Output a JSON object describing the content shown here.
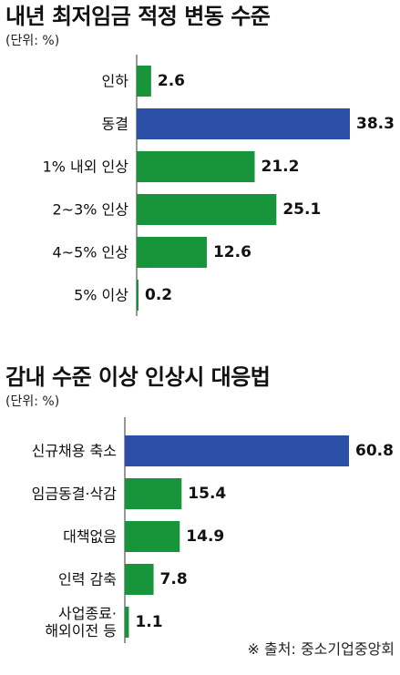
{
  "chart_data": [
    {
      "type": "bar",
      "orientation": "horizontal",
      "title": "내년 최저임금 적정 변동 수준",
      "unit": "(단위: %)",
      "categories": [
        "인하",
        "동결",
        "1% 내외 인상",
        "2~3% 인상",
        "4~5% 인상",
        "5% 이상"
      ],
      "values": [
        2.6,
        38.3,
        21.2,
        25.1,
        12.6,
        0.2
      ],
      "value_labels": [
        "2.6",
        "38.3",
        "21.2",
        "25.1",
        "12.6",
        "0.2"
      ],
      "highlight_index": 1,
      "xlim": [
        0,
        38.3
      ],
      "grid": false,
      "colors": {
        "bar": "#18953a",
        "highlight": "#2c50a8"
      }
    },
    {
      "type": "bar",
      "orientation": "horizontal",
      "title": "감내 수준 이상 인상시 대응법",
      "unit": "(단위: %)",
      "categories": [
        [
          "신규채용 축소"
        ],
        [
          "임금동결·삭감"
        ],
        [
          "대책없음"
        ],
        [
          "인력 감축"
        ],
        [
          "사업종료·",
          "해외이전 등"
        ]
      ],
      "values": [
        60.8,
        15.4,
        14.9,
        7.8,
        1.1
      ],
      "value_labels": [
        "60.8",
        "15.4",
        "14.9",
        "7.8",
        "1.1"
      ],
      "highlight_index": 0,
      "xlim": [
        0,
        60.8
      ],
      "grid": false,
      "colors": {
        "bar": "#18953a",
        "highlight": "#2c50a8"
      }
    }
  ],
  "source": "※ 출처: 중소기업중앙회"
}
